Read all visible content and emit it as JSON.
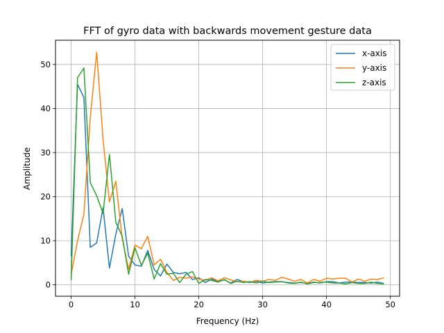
{
  "chart_data": {
    "type": "line",
    "title": "FFT of gyro data with backwards movement gesture data",
    "xlabel": "Frequency (Hz)",
    "ylabel": "Amplitude",
    "xlim": [
      -2.45,
      51.45
    ],
    "ylim": [
      -2.6,
      55.5
    ],
    "xticks": [
      0,
      10,
      20,
      30,
      40,
      50
    ],
    "yticks": [
      0,
      10,
      20,
      30,
      40,
      50
    ],
    "grid": true,
    "legend_position": "top-right",
    "x": [
      0,
      1,
      2,
      3,
      4,
      5,
      6,
      7,
      8,
      9,
      10,
      11,
      12,
      13,
      14,
      15,
      16,
      17,
      18,
      19,
      20,
      21,
      22,
      23,
      24,
      25,
      26,
      27,
      28,
      29,
      30,
      31,
      32,
      33,
      34,
      35,
      36,
      37,
      38,
      39,
      40,
      41,
      42,
      43,
      44,
      45,
      46,
      47,
      48,
      49
    ],
    "series": [
      {
        "name": "x-axis",
        "color": "#1f77b4",
        "values": [
          6.5,
          45.5,
          42.5,
          8.5,
          9.5,
          17.5,
          3.8,
          11.5,
          17.3,
          6.5,
          4.5,
          4.2,
          7.8,
          3.5,
          2.0,
          4.7,
          2.8,
          2.5,
          2.8,
          1.2,
          1.6,
          0.5,
          1.3,
          0.8,
          1.1,
          0.4,
          1.2,
          0.7,
          0.5,
          0.8,
          0.4,
          0.6,
          0.7,
          0.7,
          0.5,
          0.4,
          0.5,
          0.3,
          0.6,
          0.4,
          0.7,
          0.7,
          0.4,
          0.6,
          0.6,
          0.5,
          0.5,
          0.4,
          0.6,
          0.3
        ]
      },
      {
        "name": "y-axis",
        "color": "#ff7f0e",
        "values": [
          2.3,
          10.0,
          16.0,
          38.0,
          52.8,
          33.0,
          18.8,
          23.5,
          10.5,
          3.5,
          9.0,
          8.2,
          11.0,
          4.5,
          5.8,
          2.8,
          1.0,
          1.7,
          1.5,
          1.8,
          1.3,
          1.0,
          1.6,
          0.9,
          1.6,
          1.1,
          0.7,
          0.8,
          0.6,
          1.0,
          0.8,
          1.2,
          1.0,
          1.7,
          1.3,
          0.8,
          1.2,
          0.4,
          1.2,
          0.8,
          1.5,
          1.3,
          1.5,
          1.5,
          0.6,
          1.3,
          0.8,
          1.3,
          1.2,
          1.6
        ]
      },
      {
        "name": "z-axis",
        "color": "#2ca02c",
        "values": [
          1.0,
          47.0,
          49.2,
          23.2,
          20.2,
          16.2,
          29.6,
          14.2,
          11.0,
          2.4,
          8.4,
          4.4,
          7.2,
          1.3,
          4.8,
          2.4,
          2.6,
          0.5,
          2.4,
          3.0,
          0.3,
          1.2,
          1.0,
          0.6,
          1.2,
          0.3,
          0.8,
          0.5,
          0.7,
          0.4,
          0.8,
          0.5,
          0.6,
          0.7,
          0.4,
          0.3,
          0.6,
          0.2,
          0.5,
          0.5,
          0.6,
          0.4,
          0.4,
          0.2,
          0.5,
          0.3,
          0.3,
          0.6,
          0.3,
          0.2
        ]
      }
    ]
  }
}
